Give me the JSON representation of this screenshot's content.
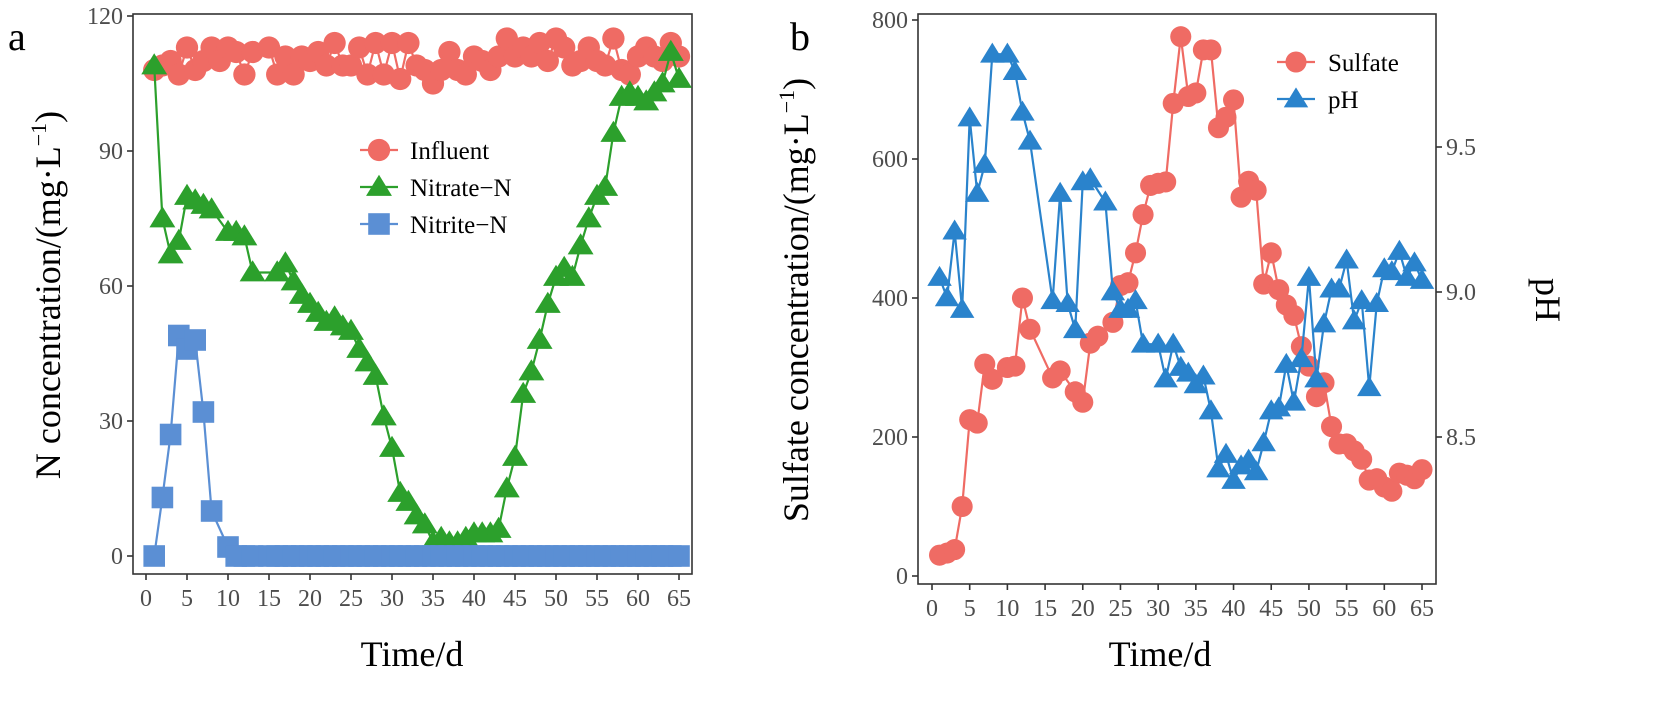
{
  "chart_data": [
    {
      "type": "line",
      "panel": "a",
      "title": "",
      "xlabel": "Time/d",
      "ylabel": "N concentration/(mg·L⁻¹)",
      "xlim": [
        -1,
        67
      ],
      "ylim": [
        -5,
        120
      ],
      "xticks": [
        0,
        5,
        10,
        15,
        20,
        25,
        30,
        35,
        40,
        45,
        50,
        55,
        60,
        65
      ],
      "yticks": [
        0,
        30,
        60,
        90,
        120
      ],
      "grid": false,
      "legend_position": "center",
      "series": [
        {
          "name": "Influent",
          "color": "#ef6b64",
          "marker": "circle",
          "x": [
            1,
            2,
            3,
            4,
            5,
            6,
            7,
            8,
            9,
            10,
            11,
            12,
            13,
            15,
            16,
            17,
            18,
            19,
            20,
            21,
            22,
            23,
            24,
            25,
            26,
            27,
            28,
            29,
            30,
            31,
            32,
            33,
            34,
            35,
            36,
            37,
            38,
            39,
            40,
            41,
            42,
            43,
            44,
            45,
            46,
            47,
            48,
            49,
            50,
            51,
            52,
            53,
            54,
            55,
            56,
            57,
            58,
            59,
            60,
            61,
            62,
            63,
            64,
            65
          ],
          "values": [
            108,
            109,
            110,
            107,
            113,
            108,
            110,
            113,
            110,
            113,
            112,
            107,
            112,
            113,
            107,
            111,
            107,
            111,
            110,
            112,
            109,
            114,
            109,
            109,
            113,
            107,
            114,
            107,
            114,
            106,
            114,
            109,
            108,
            105,
            108,
            112,
            108,
            107,
            111,
            110,
            108,
            111,
            115,
            111,
            113,
            111,
            114,
            110,
            115,
            113,
            109,
            110,
            113,
            110,
            109,
            115,
            108,
            107,
            111,
            113,
            111,
            110,
            114,
            111
          ]
        },
        {
          "name": "Nitrate−N",
          "color": "#2ca02c",
          "marker": "triangle",
          "x": [
            1,
            2,
            3,
            4,
            5,
            6,
            7,
            8,
            10,
            11,
            12,
            13,
            16,
            17,
            18,
            19,
            20,
            21,
            22,
            23,
            24,
            25,
            26,
            27,
            28,
            29,
            30,
            31,
            32,
            33,
            34,
            35,
            36,
            37,
            38,
            39,
            40,
            41,
            42,
            43,
            44,
            45,
            46,
            47,
            48,
            49,
            50,
            51,
            52,
            53,
            54,
            55,
            56,
            57,
            58,
            59,
            60,
            61,
            62,
            63,
            64,
            65
          ],
          "values": [
            109,
            75,
            67,
            70,
            80,
            79,
            78,
            77,
            72,
            72,
            71,
            63,
            63,
            65,
            61,
            58,
            56,
            54,
            52,
            53,
            51,
            50,
            46,
            43,
            40,
            31,
            24,
            14,
            12,
            9,
            7,
            3,
            4,
            3,
            3,
            4,
            5,
            5,
            5,
            6,
            15,
            22,
            36,
            41,
            48,
            56,
            62,
            64,
            62,
            69,
            75,
            80,
            82,
            94,
            102,
            103,
            102,
            101,
            103,
            105,
            112,
            106
          ]
        },
        {
          "name": "Nitrite−N",
          "color": "#5b8fd4",
          "marker": "square",
          "x": [
            1,
            2,
            3,
            4,
            5,
            6,
            7,
            8,
            10,
            11,
            12,
            13,
            15,
            16,
            17,
            18,
            19,
            20,
            21,
            22,
            23,
            24,
            25,
            26,
            27,
            28,
            29,
            30,
            31,
            32,
            33,
            34,
            35,
            36,
            37,
            38,
            39,
            40,
            41,
            42,
            43,
            44,
            45,
            46,
            47,
            48,
            49,
            50,
            51,
            52,
            53,
            54,
            55,
            56,
            57,
            58,
            59,
            60,
            61,
            62,
            63,
            64,
            65
          ],
          "values": [
            0,
            13,
            27,
            49,
            46,
            48,
            32,
            10,
            2,
            0,
            0,
            0,
            0,
            0,
            0,
            0,
            0,
            0,
            0,
            0,
            0,
            0,
            0,
            0,
            0,
            0,
            0,
            0,
            0,
            0,
            0,
            0,
            0,
            0,
            0,
            0,
            0,
            0,
            0,
            0,
            0,
            0,
            0,
            0,
            0,
            0,
            0,
            0,
            0,
            0,
            0,
            0,
            0,
            0,
            0,
            0,
            0,
            0,
            0,
            0,
            0,
            0,
            0
          ]
        }
      ]
    },
    {
      "type": "line",
      "panel": "b",
      "title": "",
      "xlabel": "Time/d",
      "ylabel": "Sulfate concentration/(mg·L⁻¹)",
      "y2label": "pH",
      "xlim": [
        -1,
        67
      ],
      "ylim": [
        -10,
        800
      ],
      "y2lim": [
        8.21,
        9.86
      ],
      "xticks": [
        0,
        5,
        10,
        15,
        20,
        25,
        30,
        35,
        40,
        45,
        50,
        55,
        60,
        65
      ],
      "yticks": [
        0,
        200,
        400,
        600,
        800
      ],
      "y2ticks": [
        8.5,
        9.0,
        9.5
      ],
      "grid": false,
      "legend_position": "top-right",
      "series": [
        {
          "name": "Sulfate",
          "axis": "left",
          "color": "#ef6b64",
          "marker": "circle",
          "x": [
            1,
            2,
            3,
            4,
            5,
            6,
            7,
            8,
            10,
            11,
            12,
            13,
            16,
            17,
            19,
            20,
            21,
            22,
            24,
            25,
            26,
            27,
            28,
            29,
            30,
            31,
            32,
            33,
            34,
            35,
            36,
            37,
            38,
            39,
            40,
            41,
            42,
            43,
            44,
            45,
            46,
            47,
            48,
            49,
            50,
            51,
            52,
            53,
            54,
            55,
            56,
            57,
            58,
            59,
            60,
            61,
            62,
            63,
            64,
            65
          ],
          "values": [
            30,
            33,
            38,
            100,
            225,
            220,
            305,
            283,
            300,
            302,
            400,
            355,
            285,
            295,
            265,
            250,
            335,
            345,
            365,
            418,
            422,
            465,
            520,
            562,
            565,
            567,
            680,
            776,
            690,
            695,
            757,
            757,
            645,
            660,
            685,
            545,
            568,
            555,
            420,
            465,
            412,
            390,
            375,
            330,
            302,
            258,
            278,
            215,
            190,
            190,
            180,
            168,
            138,
            140,
            128,
            122,
            148,
            145,
            140,
            153
          ]
        },
        {
          "name": "pH",
          "axis": "right",
          "color": "#2a83cc",
          "marker": "triangle",
          "x": [
            1,
            2,
            3,
            4,
            5,
            6,
            7,
            8,
            10,
            11,
            12,
            13,
            16,
            17,
            18,
            19,
            20,
            21,
            23,
            24,
            25,
            26,
            27,
            28,
            30,
            31,
            32,
            33,
            34,
            35,
            36,
            37,
            38,
            39,
            40,
            41,
            42,
            43,
            44,
            45,
            46,
            47,
            48,
            49,
            50,
            51,
            52,
            53,
            54,
            55,
            56,
            57,
            58,
            59,
            60,
            61,
            62,
            63,
            64,
            65
          ],
          "values": [
            9.05,
            8.98,
            9.21,
            8.94,
            9.6,
            9.34,
            9.44,
            9.82,
            9.82,
            9.76,
            9.62,
            9.52,
            8.97,
            9.34,
            8.96,
            8.87,
            9.38,
            9.39,
            9.31,
            9.0,
            8.94,
            8.94,
            8.97,
            8.82,
            8.82,
            8.7,
            8.82,
            8.74,
            8.72,
            8.68,
            8.71,
            8.59,
            8.39,
            8.44,
            8.35,
            8.4,
            8.42,
            8.38,
            8.48,
            8.59,
            8.6,
            8.75,
            8.62,
            8.77,
            9.05,
            8.7,
            8.89,
            9.01,
            9.01,
            9.11,
            8.9,
            8.97,
            8.67,
            8.96,
            9.08,
            9.07,
            9.14,
            9.05,
            9.1,
            9.04
          ]
        }
      ]
    }
  ],
  "panel_labels": {
    "a": "a",
    "b": "b"
  },
  "axis_titles": {
    "a_x": "Time/d",
    "a_y": "N concentration/(mg·L",
    "a_y_sup": "−1",
    "a_y_end": ")",
    "b_x": "Time/d",
    "b_y": "Sulfate concentration/(mg·L",
    "b_y_sup": "−1",
    "b_y_end": ")",
    "b_y2": "pH"
  }
}
